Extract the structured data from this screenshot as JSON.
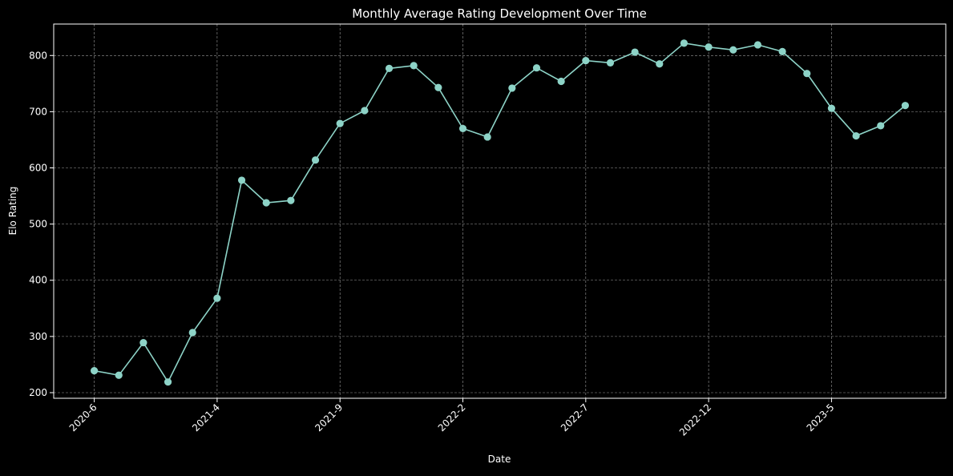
{
  "chart_data": {
    "type": "line",
    "title": "Monthly Average Rating Development Over Time",
    "xlabel": "Date",
    "ylabel": "Elo Rating",
    "x_tick_labels": [
      "2020-6",
      "2021-4",
      "2021-9",
      "2022-2",
      "2022-7",
      "2022-12",
      "2023-5"
    ],
    "y_tick_values": [
      200,
      300,
      400,
      500,
      600,
      700,
      800
    ],
    "ylim": [
      190,
      856
    ],
    "grid": true,
    "series": [
      {
        "values": [
          239,
          231,
          289,
          219,
          307,
          368,
          578,
          538,
          542,
          614,
          679,
          702,
          777,
          782,
          743,
          670,
          655,
          742,
          778,
          754,
          791,
          787,
          806,
          785,
          822,
          815,
          810,
          819,
          807,
          768,
          706,
          657,
          675,
          711
        ]
      }
    ],
    "colors": {
      "background": "#000000",
      "line": "#8dd3c7",
      "marker": "#8dd3c7",
      "grid": "#9a9a9a",
      "text": "#ffffff",
      "axes": "#ffffff"
    }
  }
}
